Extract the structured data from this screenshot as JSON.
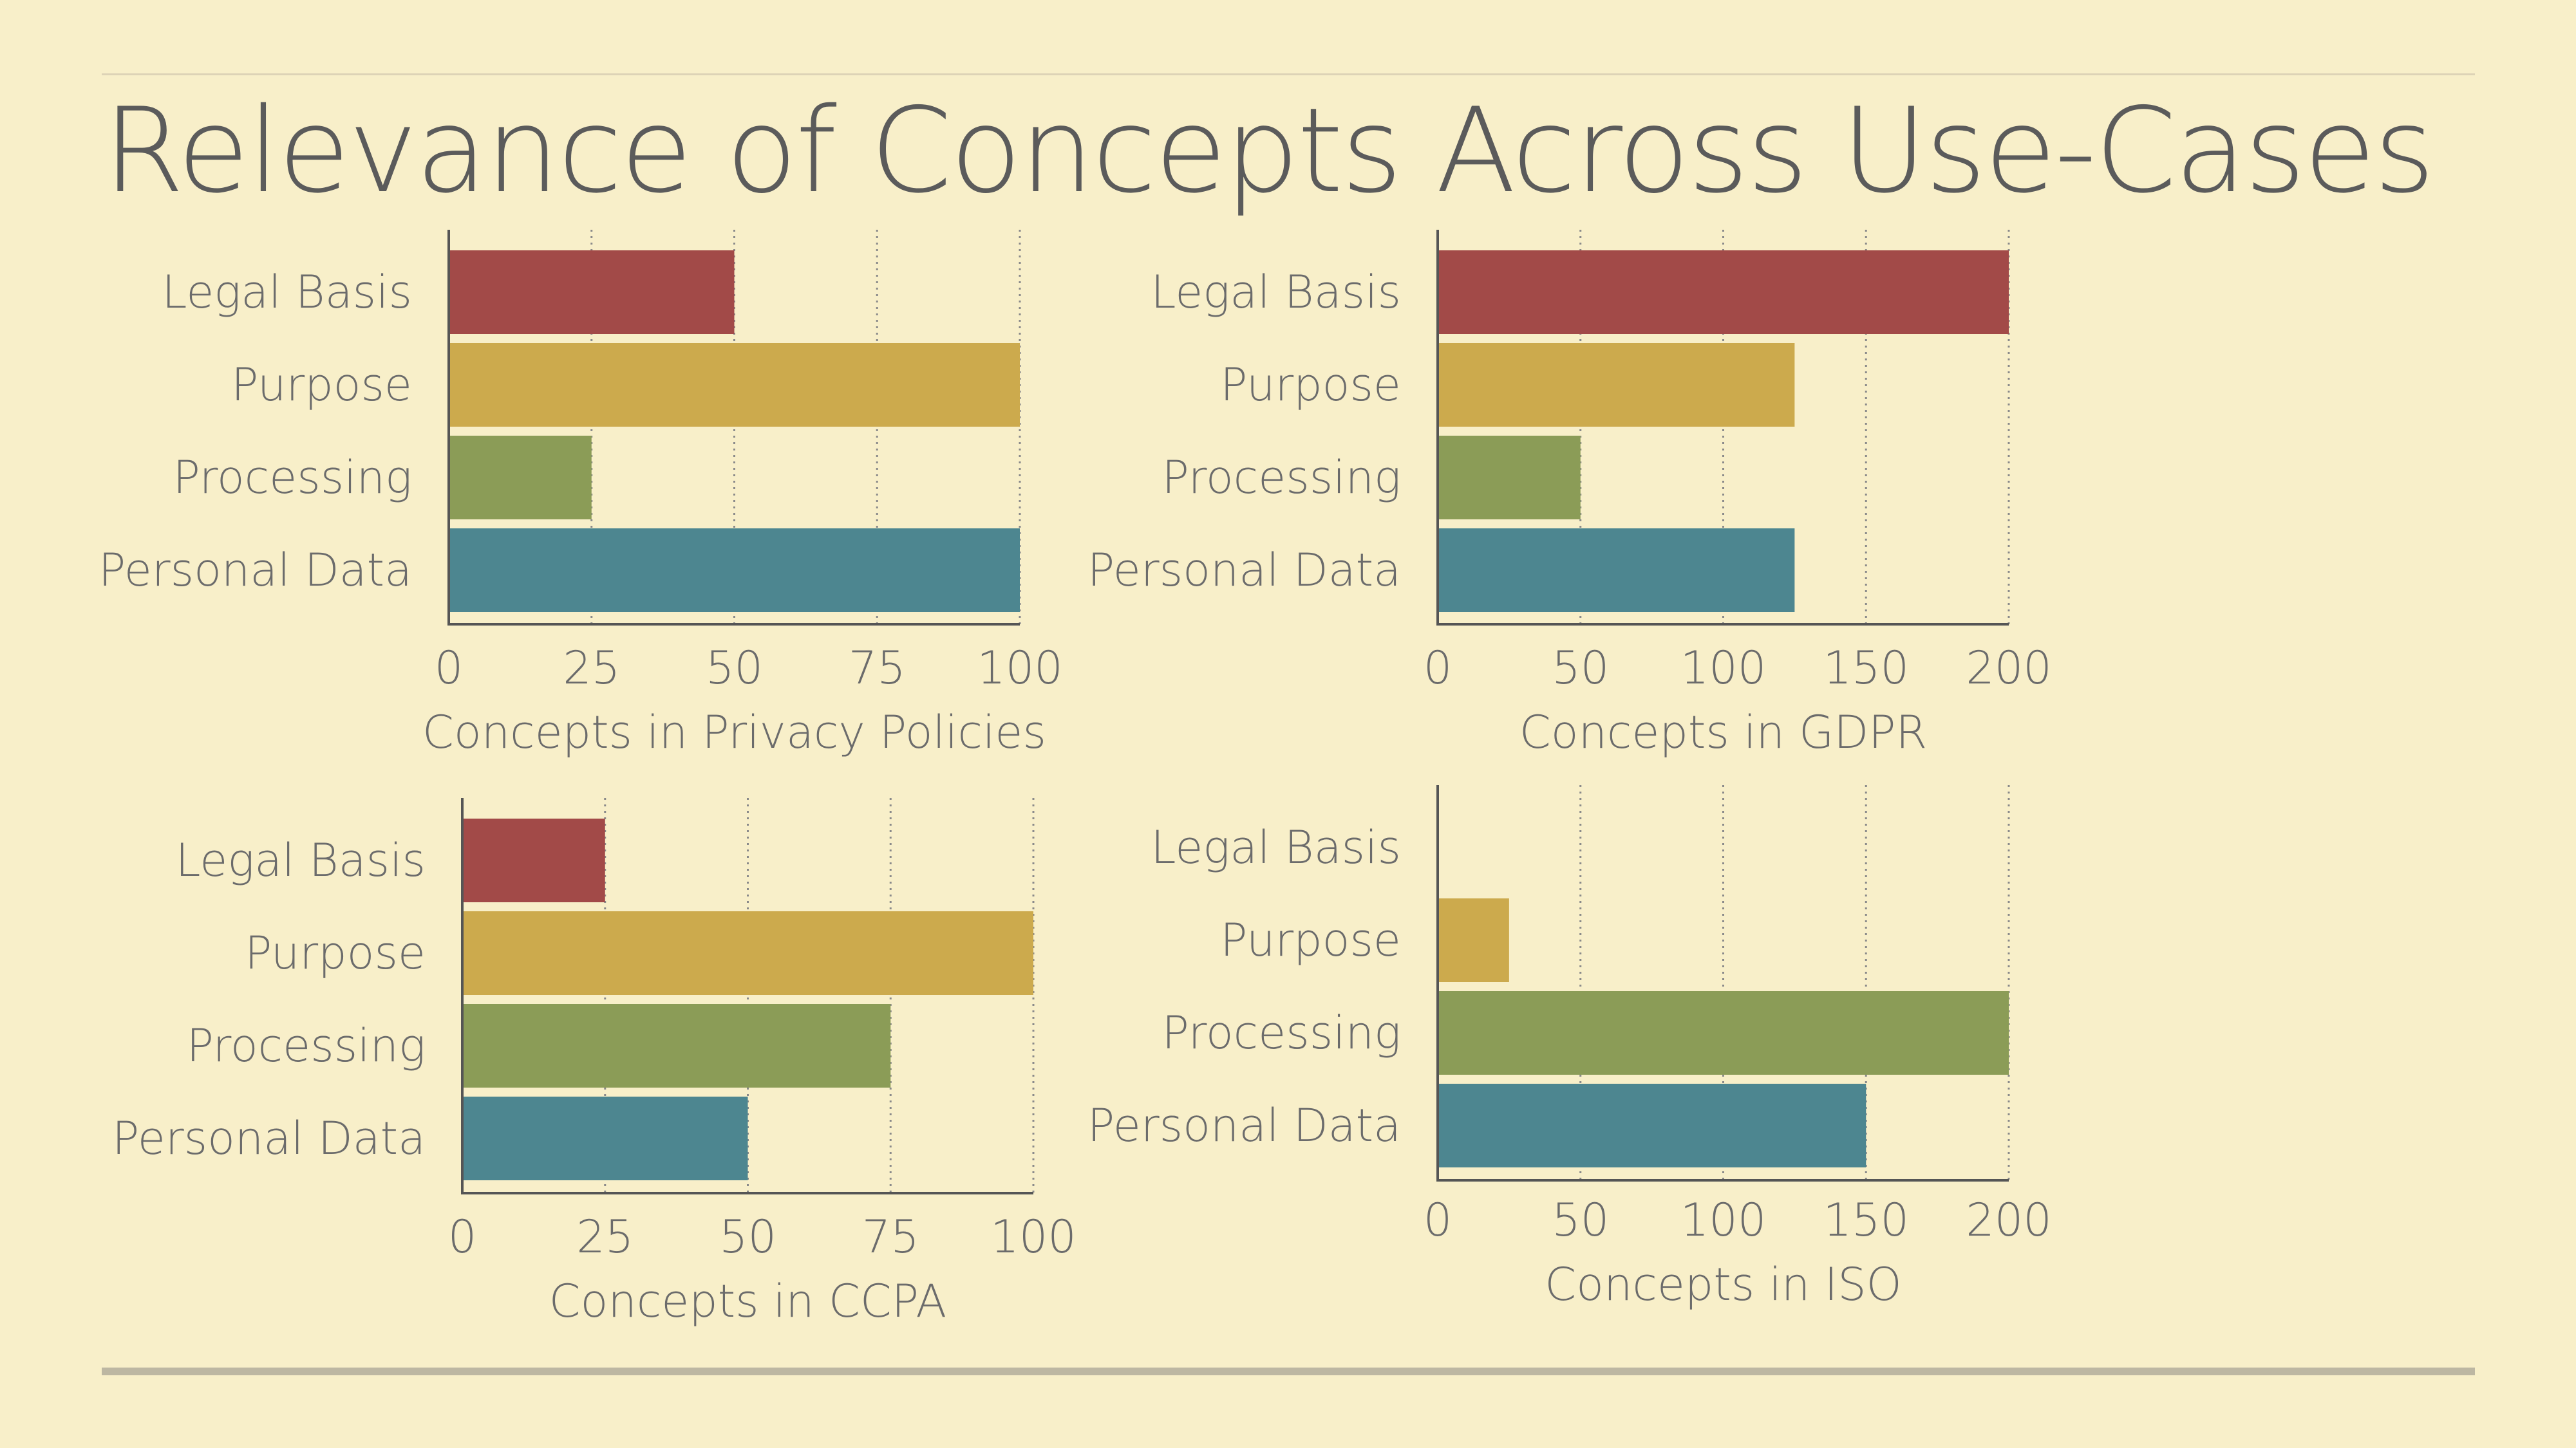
{
  "title": "Relevance of Concepts Across Use-Cases",
  "colors": {
    "Legal Basis": "#a24a48",
    "Purpose": "#ccaa4d",
    "Processing": "#8b9c57",
    "Personal Data": "#4d8690",
    "axis": "#555555",
    "grid": "#8a8a8a"
  },
  "chart_data": [
    {
      "type": "bar",
      "orientation": "horizontal",
      "categories": [
        "Legal Basis",
        "Purpose",
        "Processing",
        "Personal Data"
      ],
      "values": [
        50,
        100,
        25,
        100
      ],
      "xlabel": "Concepts in Privacy Policies",
      "xlim": [
        0,
        100
      ],
      "xticks": [
        "0",
        "25",
        "50",
        "75",
        "100"
      ],
      "grid": "vertical dotted"
    },
    {
      "type": "bar",
      "orientation": "horizontal",
      "categories": [
        "Legal Basis",
        "Purpose",
        "Processing",
        "Personal Data"
      ],
      "values": [
        200,
        125,
        50,
        125
      ],
      "xlabel": "Concepts in GDPR",
      "xlim": [
        0,
        200
      ],
      "xticks": [
        "0",
        "50",
        "100",
        "150",
        "200"
      ],
      "grid": "vertical dotted"
    },
    {
      "type": "bar",
      "orientation": "horizontal",
      "categories": [
        "Legal Basis",
        "Purpose",
        "Processing",
        "Personal Data"
      ],
      "values": [
        25,
        100,
        75,
        50
      ],
      "xlabel": "Concepts in CCPA",
      "xlim": [
        0,
        100
      ],
      "xticks": [
        "0",
        "25",
        "50",
        "75",
        "100"
      ],
      "grid": "vertical dotted"
    },
    {
      "type": "bar",
      "orientation": "horizontal",
      "categories": [
        "Legal Basis",
        "Purpose",
        "Processing",
        "Personal Data"
      ],
      "values": [
        0,
        25,
        200,
        150
      ],
      "xlabel": "Concepts in ISO",
      "xlim": [
        0,
        200
      ],
      "xticks": [
        "0",
        "50",
        "100",
        "150",
        "200"
      ],
      "grid": "vertical dotted"
    }
  ]
}
